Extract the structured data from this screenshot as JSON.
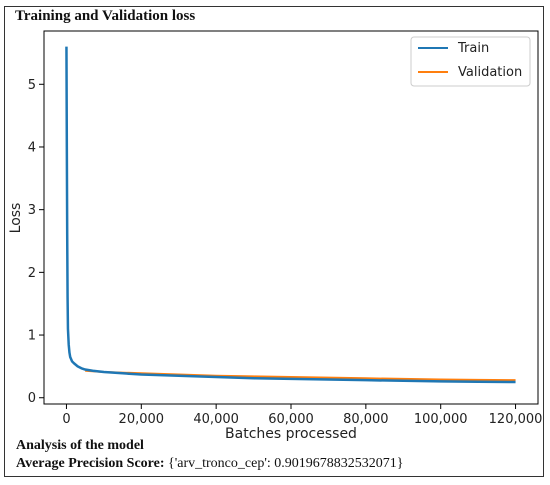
{
  "chart_data": {
    "type": "line",
    "title": "Training and Validation loss",
    "xlabel": "Batches processed",
    "ylabel": "Loss",
    "xlim": [
      -6000,
      126000
    ],
    "ylim": [
      -0.1,
      5.85
    ],
    "x_ticks": [
      0,
      20000,
      40000,
      60000,
      80000,
      100000,
      120000
    ],
    "x_tick_labels": [
      "0",
      "20,000",
      "40,000",
      "60,000",
      "80,000",
      "100,000",
      "120,000"
    ],
    "y_ticks": [
      0,
      1,
      2,
      3,
      4,
      5
    ],
    "y_tick_labels": [
      "0",
      "1",
      "2",
      "3",
      "4",
      "5"
    ],
    "grid": false,
    "legend_position": "top-right",
    "series": [
      {
        "name": "Train",
        "color": "#1f77b4",
        "x": [
          0,
          100,
          200,
          300,
          400,
          600,
          800,
          1000,
          1500,
          2000,
          3000,
          4000,
          5000,
          7000,
          10000,
          15000,
          20000,
          25000,
          30000,
          40000,
          50000,
          60000,
          70000,
          80000,
          90000,
          100000,
          110000,
          120000
        ],
        "y": [
          5.6,
          4.0,
          2.6,
          1.6,
          1.1,
          0.85,
          0.72,
          0.65,
          0.58,
          0.55,
          0.5,
          0.47,
          0.45,
          0.43,
          0.41,
          0.39,
          0.37,
          0.36,
          0.35,
          0.33,
          0.31,
          0.3,
          0.29,
          0.28,
          0.27,
          0.26,
          0.255,
          0.25
        ]
      },
      {
        "name": "Validation",
        "color": "#ff7f0e",
        "x": [
          5000,
          10000,
          20000,
          30000,
          40000,
          50000,
          60000,
          70000,
          80000,
          90000,
          100000,
          110000,
          120000
        ],
        "y": [
          0.43,
          0.41,
          0.39,
          0.37,
          0.35,
          0.34,
          0.33,
          0.32,
          0.31,
          0.3,
          0.29,
          0.285,
          0.28
        ]
      }
    ]
  },
  "analysis": {
    "heading": "Analysis of the model",
    "score_label": "Average Precision Score:",
    "score_value": "{'arv_tronco_cep': 0.9019678832532071}"
  }
}
